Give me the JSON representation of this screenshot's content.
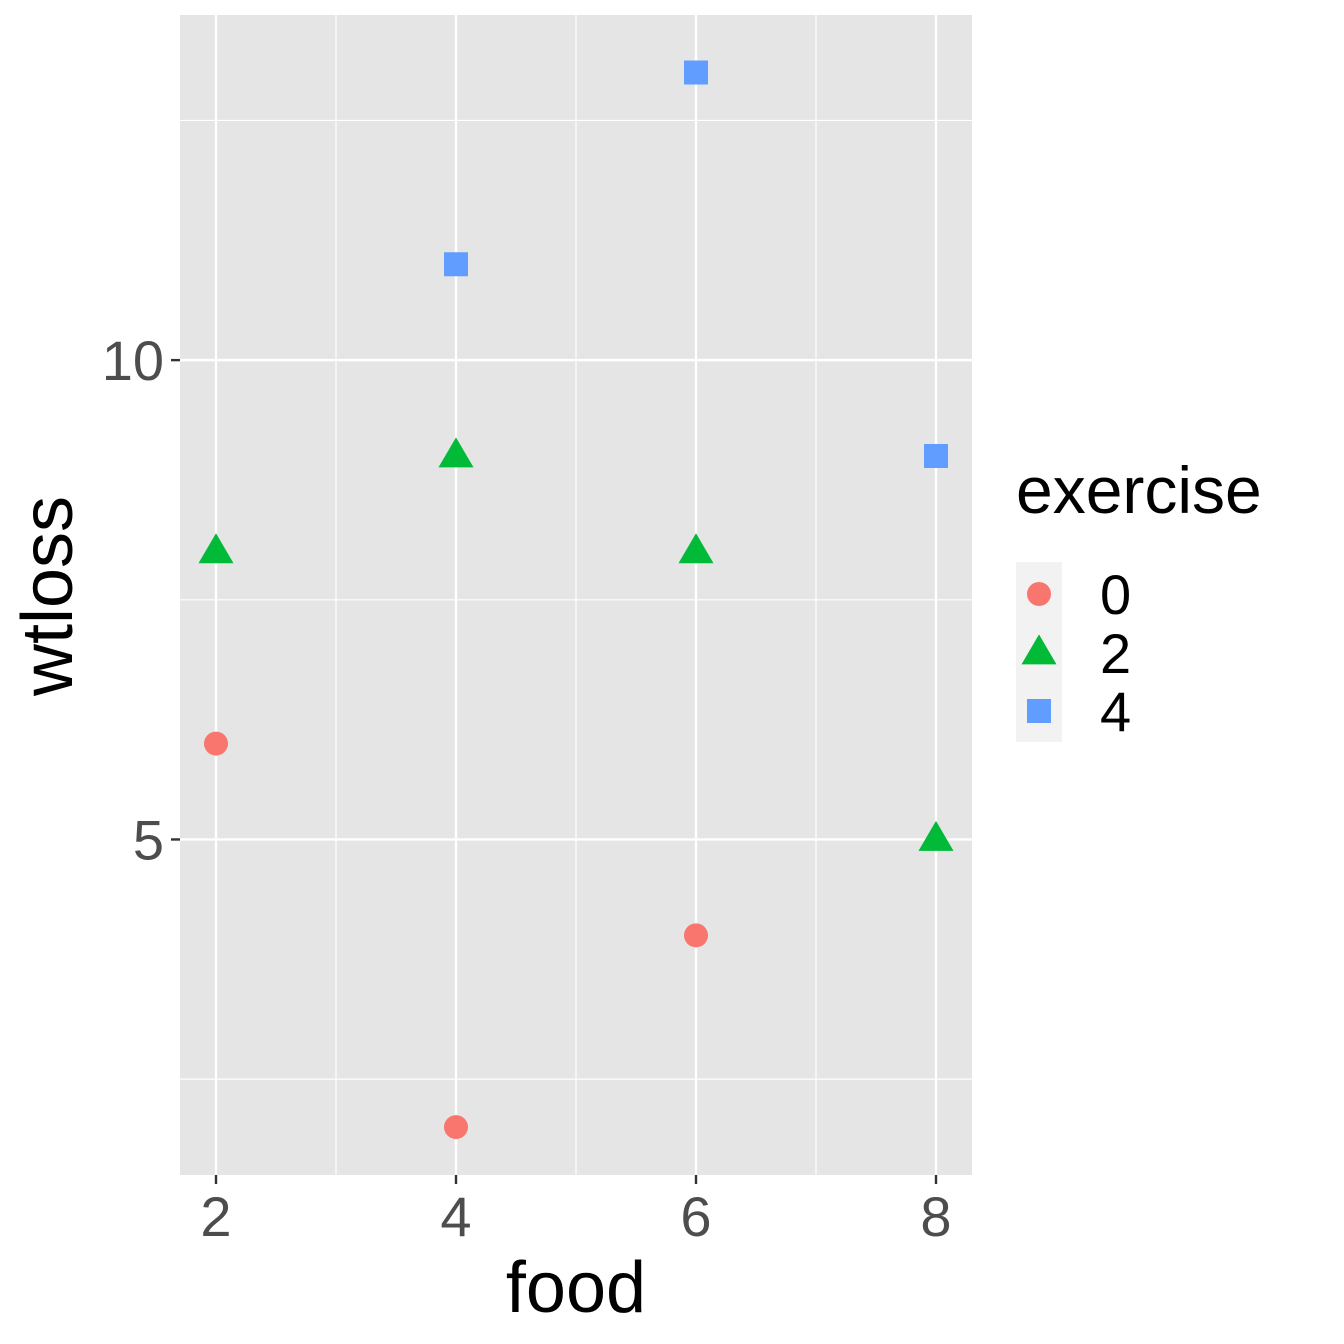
{
  "chart_data": {
    "type": "scatter",
    "title": "",
    "xlabel": "food",
    "ylabel": "wtloss",
    "xlim": [
      1.7,
      8.3
    ],
    "ylim": [
      1.5,
      13.6
    ],
    "x_ticks": [
      2,
      4,
      6,
      8
    ],
    "x_tick_labels": [
      "2",
      "4",
      "6",
      "8"
    ],
    "x_minor_gridlines": [
      3,
      5,
      7
    ],
    "y_ticks": [
      5,
      10
    ],
    "y_tick_labels": [
      "5",
      "10"
    ],
    "y_minor_gridlines": [
      2.5,
      7.5,
      12.5
    ],
    "grid": true,
    "panel_background": "#e5e5e5",
    "legend": {
      "title": "exercise",
      "position": "right",
      "entries": [
        {
          "label": "0",
          "shape": "circle",
          "color": "#F8766D"
        },
        {
          "label": "2",
          "shape": "triangle",
          "color": "#00BA38"
        },
        {
          "label": "4",
          "shape": "square",
          "color": "#619CFF"
        }
      ]
    },
    "series": [
      {
        "name": "0",
        "shape": "circle",
        "color": "#F8766D",
        "points": [
          {
            "x": 2,
            "y": 6
          },
          {
            "x": 4,
            "y": 2
          },
          {
            "x": 6,
            "y": 4
          }
        ]
      },
      {
        "name": "2",
        "shape": "triangle",
        "color": "#00BA38",
        "points": [
          {
            "x": 2,
            "y": 8
          },
          {
            "x": 4,
            "y": 9
          },
          {
            "x": 6,
            "y": 8
          },
          {
            "x": 8,
            "y": 5
          }
        ]
      },
      {
        "name": "4",
        "shape": "square",
        "color": "#619CFF",
        "points": [
          {
            "x": 4,
            "y": 11
          },
          {
            "x": 6,
            "y": 13
          },
          {
            "x": 8,
            "y": 9
          }
        ]
      }
    ]
  }
}
